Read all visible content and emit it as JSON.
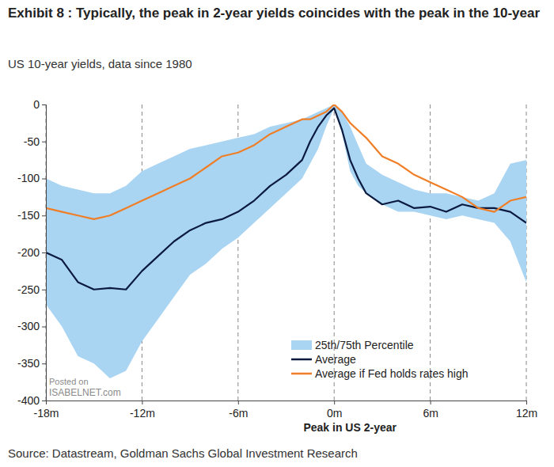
{
  "chart_data": {
    "type": "line",
    "title": "Exhibit 8 : Typically, the peak in 2-year yields coincides with the peak in the 10-year",
    "subtitle": "US 10-year yields, data since 1980",
    "x_label": "Peak in US 2-year",
    "source": "Source: Datastream, Goldman Sachs Global Investment Research",
    "annotations": [
      "Posted on",
      "ISABELNET.com"
    ],
    "x": [
      -18,
      -17,
      -16,
      -15,
      -14,
      -13,
      -12,
      -11,
      -10,
      -9,
      -8,
      -7,
      -6,
      -5,
      -4,
      -3,
      -2,
      -1.5,
      -1,
      -0.5,
      0,
      0.5,
      1,
      1.5,
      2,
      3,
      4,
      5,
      6,
      7,
      8,
      9,
      10,
      11,
      12
    ],
    "xlim": [
      -18,
      12
    ],
    "xticks": [
      {
        "value": -18,
        "label": "-18m"
      },
      {
        "value": -12,
        "label": "-12m"
      },
      {
        "value": -6,
        "label": "-6m"
      },
      {
        "value": 0,
        "label": "0m"
      },
      {
        "value": 6,
        "label": "6m"
      },
      {
        "value": 12,
        "label": "12m"
      }
    ],
    "ylim": [
      -400,
      0
    ],
    "yticks": [
      0,
      -50,
      -100,
      -150,
      -200,
      -250,
      -300,
      -350,
      -400
    ],
    "grid": true,
    "legend": "lower right",
    "series": [
      {
        "name": "25th/75th Percentile",
        "type": "band",
        "color": "#a9d5f3",
        "low": [
          -270,
          -300,
          -340,
          -350,
          -370,
          -360,
          -320,
          -290,
          -260,
          -230,
          -215,
          -195,
          -180,
          -160,
          -140,
          -120,
          -100,
          -80,
          -60,
          -30,
          -5,
          -40,
          -90,
          -110,
          -120,
          -135,
          -145,
          -145,
          -150,
          -155,
          -150,
          -155,
          -160,
          -185,
          -240
        ],
        "high": [
          -100,
          -110,
          -115,
          -120,
          -120,
          -110,
          -90,
          -80,
          -70,
          -60,
          -55,
          -50,
          -45,
          -40,
          -30,
          -25,
          -20,
          -15,
          -10,
          -5,
          0,
          -10,
          -30,
          -55,
          -80,
          -95,
          -105,
          -115,
          -120,
          -120,
          -125,
          -130,
          -120,
          -80,
          -75
        ]
      },
      {
        "name": "Average",
        "type": "line",
        "color": "#0b1a3e",
        "values": [
          -200,
          -210,
          -240,
          -250,
          -248,
          -250,
          -225,
          -205,
          -185,
          -170,
          -160,
          -155,
          -145,
          -130,
          -110,
          -95,
          -75,
          -50,
          -30,
          -15,
          -5,
          -35,
          -75,
          -100,
          -120,
          -135,
          -130,
          -140,
          -138,
          -145,
          -135,
          -140,
          -140,
          -145,
          -160
        ]
      },
      {
        "name": "Average if Fed holds rates high",
        "type": "line",
        "color": "#f07e26",
        "values": [
          -140,
          -145,
          -150,
          -155,
          -150,
          -140,
          -130,
          -120,
          -110,
          -100,
          -85,
          -70,
          -65,
          -55,
          -40,
          -30,
          -20,
          -20,
          -15,
          -10,
          0,
          -10,
          -25,
          -35,
          -45,
          -70,
          -80,
          -95,
          -105,
          -115,
          -125,
          -140,
          -145,
          -130,
          -125
        ]
      }
    ]
  }
}
